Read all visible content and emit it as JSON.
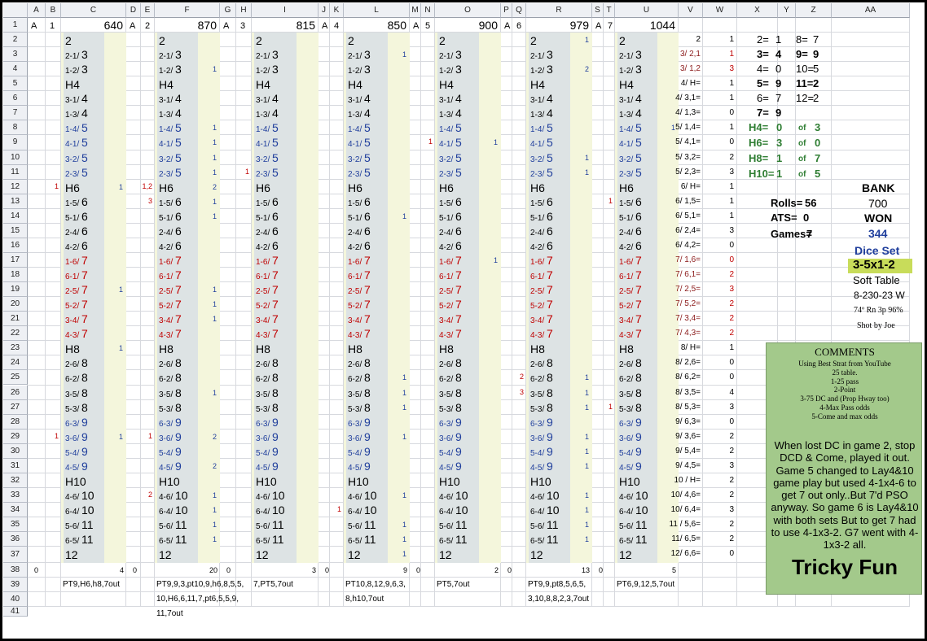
{
  "spreadsheet": {
    "column_headers": [
      "A",
      "B",
      "C",
      "D",
      "E",
      "F",
      "G",
      "H",
      "I",
      "J",
      "K",
      "L",
      "M",
      "N",
      "O",
      "P",
      "Q",
      "R",
      "S",
      "T",
      "U",
      "V",
      "W",
      "X",
      "Y",
      "Z",
      "AA"
    ],
    "row_count": 41,
    "colors": {
      "grid": "#d7d9de",
      "header": "#eef0f4",
      "gray_band": "#dde3e4",
      "yellow_band": "#f4f6dc",
      "comments": "#a3c98b",
      "dice_set_highlight": "#c8dc5a",
      "red": "#c00000",
      "blue": "#1f3e9c",
      "green": "#2e7d32"
    }
  },
  "roll_labels": [
    "2",
    "2-1/ 3",
    "1-2/ 3",
    "H4",
    "3-1/ 4",
    "1-3/ 4",
    "1-4/ 5",
    "4-1/ 5",
    "3-2/ 5",
    "2-3/ 5",
    "H6",
    "1-5/ 6",
    "5-1/ 6",
    "2-4/ 6",
    "4-2/ 6",
    "1-6/ 7",
    "6-1/ 7",
    "2-5/ 7",
    "5-2/ 7",
    "3-4/ 7",
    "4-3/ 7",
    "H8",
    "2-6/ 8",
    "6-2/ 8",
    "3-5/ 8",
    "5-3/ 8",
    "6-3/ 9",
    "3-6/ 9",
    "5-4/ 9",
    "4-5/ 9",
    "H10",
    "4-6/ 10",
    "6-4/ 10",
    "5-6/ 11",
    "6-5/ 11",
    "12"
  ],
  "roll_colors": [
    "k",
    "k",
    "k",
    "k",
    "k",
    "k",
    "b",
    "b",
    "b",
    "b",
    "k",
    "k",
    "k",
    "k",
    "k",
    "r",
    "r",
    "r",
    "r",
    "r",
    "r",
    "k",
    "k",
    "k",
    "k",
    "k",
    "b",
    "b",
    "b",
    "b",
    "k",
    "k",
    "k",
    "k",
    "k",
    "k"
  ],
  "games": [
    {
      "label_a": "A",
      "label_b": "1",
      "bank": "640",
      "total_left": "0",
      "total_right": "4",
      "points": [
        "PT9,H6,h8,7out"
      ],
      "left_marks": [
        [
          "12",
          "1"
        ],
        [
          "29",
          "1"
        ]
      ],
      "right_marks": [
        [
          "12",
          "1"
        ],
        [
          "19",
          "1"
        ],
        [
          "23",
          "1"
        ],
        [
          "29",
          "1"
        ]
      ]
    },
    {
      "label_a": "A",
      "label_b": "2",
      "bank": "870",
      "total_left": "0",
      "total_right": "20",
      "points": [
        "PT9,9,3,pt10,9,h6,8,5,5,",
        "10,H6,6,11,7,pt6,5,5,9,",
        "11,7out"
      ],
      "left_marks": [
        [
          "12",
          "1,2"
        ],
        [
          "13",
          "3"
        ],
        [
          "29",
          "1"
        ],
        [
          "33",
          "2"
        ]
      ],
      "right_marks": [
        [
          "4",
          "1"
        ],
        [
          "8",
          "1"
        ],
        [
          "9",
          "1"
        ],
        [
          "10",
          "1"
        ],
        [
          "11",
          "1"
        ],
        [
          "12",
          "2"
        ],
        [
          "13",
          "1"
        ],
        [
          "14",
          "1"
        ],
        [
          "19",
          "1"
        ],
        [
          "20",
          "1"
        ],
        [
          "21",
          "1"
        ],
        [
          "26",
          "1"
        ],
        [
          "29",
          "2"
        ],
        [
          "31",
          "2"
        ],
        [
          "33",
          "1"
        ],
        [
          "34",
          "1"
        ],
        [
          "35",
          "1"
        ],
        [
          "36",
          "1"
        ]
      ]
    },
    {
      "label_a": "A",
      "label_b": "3",
      "bank": "815",
      "total_left": "0",
      "total_right": "3",
      "points": [
        "7,PT5,7out"
      ],
      "left_marks": [
        [
          "11",
          "1"
        ]
      ],
      "right_marks": []
    },
    {
      "label_a": "A",
      "label_b": "4",
      "bank": "850",
      "total_left": "0",
      "total_right": "9",
      "points": [
        "PT10,8,12,9,6,3,",
        "8,h10,7out"
      ],
      "left_marks": [
        [
          "34",
          "1"
        ]
      ],
      "right_marks": [
        [
          "3",
          "1"
        ],
        [
          "14",
          "1"
        ],
        [
          "25",
          "1"
        ],
        [
          "26",
          "1"
        ],
        [
          "27",
          "1"
        ],
        [
          "29",
          "1"
        ],
        [
          "33",
          "1"
        ],
        [
          "35",
          "1"
        ],
        [
          "36",
          "1"
        ],
        [
          "37",
          "1"
        ]
      ]
    },
    {
      "label_a": "A",
      "label_b": "5",
      "bank": "900",
      "total_left": "0",
      "total_right": "2",
      "points": [
        "PT5,7out"
      ],
      "left_marks": [
        [
          "9",
          "1"
        ]
      ],
      "right_marks": [
        [
          "9",
          "1"
        ],
        [
          "17",
          "1"
        ]
      ]
    },
    {
      "label_a": "A",
      "label_b": "6",
      "bank": "979",
      "total_left": "0",
      "total_right": "13",
      "points": [
        "PT9,9,pt8,5,6,5,",
        "3,10,8,8,2,3,7out"
      ],
      "left_marks": [
        [
          "25",
          "2"
        ],
        [
          "26",
          "3"
        ]
      ],
      "right_marks": [
        [
          "2",
          "1"
        ],
        [
          "4",
          "2"
        ],
        [
          "10",
          "1"
        ],
        [
          "11",
          "1"
        ],
        [
          "25",
          "1"
        ],
        [
          "26",
          "1"
        ],
        [
          "27",
          "1"
        ],
        [
          "29",
          "1"
        ],
        [
          "30",
          "1"
        ],
        [
          "31",
          "1"
        ],
        [
          "33",
          "1"
        ],
        [
          "34",
          "1"
        ],
        [
          "35",
          "1"
        ],
        [
          "36",
          "1"
        ]
      ]
    },
    {
      "label_a": "A",
      "label_b": "7",
      "bank": "1044",
      "total_left": "0",
      "total_right": "5",
      "points": [
        "PT6,9,12,5,7out"
      ],
      "left_marks": [
        [
          "13",
          "1"
        ],
        [
          "27",
          "1"
        ]
      ],
      "right_marks": [
        [
          "8",
          "1"
        ]
      ]
    }
  ],
  "summary_v": [
    "2",
    "3/ 2,1",
    "3/ 1,2",
    "4/ H=",
    "4/ 3,1=",
    "4/ 1,3=",
    "5/ 1,4=",
    "5/ 4,1=",
    "5/ 3,2=",
    "5/ 2,3=",
    "6/ H=",
    "6/ 1,5=",
    "6/ 5,1=",
    "6/ 2,4=",
    "6/ 4,2=",
    "7/ 1,6=",
    "7/ 6,1=",
    "7/ 2,5=",
    "7/ 5,2=",
    "7/ 3,4=",
    "7/ 4,3=",
    "8/ H=",
    "8/ 2,6=",
    "8/ 6,2=",
    "8/ 3,5=",
    "8/ 5,3=",
    "9/ 6,3=",
    "9/ 3,6=",
    "9/ 5,4=",
    "9/ 4,5=",
    "10 / H=",
    "10/ 4,6=",
    "10/ 6,4=",
    "11 / 5,6=",
    "11/ 6,5=",
    "12/ 6,6="
  ],
  "summary_v_colors": [
    "k",
    "m",
    "m",
    "k",
    "k",
    "k",
    "k",
    "k",
    "k",
    "k",
    "k",
    "k",
    "k",
    "k",
    "k",
    "m",
    "m",
    "m",
    "m",
    "m",
    "m",
    "k",
    "k",
    "k",
    "k",
    "k",
    "k",
    "k",
    "k",
    "k",
    "k",
    "k",
    "k",
    "k",
    "k",
    "k"
  ],
  "summary_w": [
    "1",
    "1",
    "3",
    "1",
    "1",
    "0",
    "1",
    "0",
    "2",
    "3",
    "1",
    "1",
    "1",
    "3",
    "0",
    "0",
    "2",
    "3",
    "2",
    "2",
    "2",
    "1",
    "0",
    "0",
    "4",
    "3",
    "0",
    "2",
    "2",
    "3",
    "2",
    "2",
    "3",
    "2",
    "2",
    "0"
  ],
  "summary_w_colors": [
    "k",
    "m",
    "m",
    "k",
    "k",
    "k",
    "k",
    "k",
    "k",
    "k",
    "k",
    "k",
    "k",
    "k",
    "k",
    "m",
    "m",
    "m",
    "m",
    "m",
    "m",
    "k",
    "k",
    "k",
    "k",
    "k",
    "k",
    "k",
    "k",
    "k",
    "k",
    "k",
    "k",
    "k",
    "k",
    "k"
  ],
  "totals": [
    {
      "row": "2",
      "x": "2=",
      "y": "1",
      "z": "8=",
      "aa": "7",
      "bold": false
    },
    {
      "row": "3",
      "x": "3=",
      "y": "4",
      "z": "9=",
      "aa": "9",
      "bold": true
    },
    {
      "row": "4",
      "x": "4=",
      "y": "0",
      "z": "10=",
      "aa": "5",
      "bold": false
    },
    {
      "row": "5",
      "x": "5=",
      "y": "9",
      "z": "11=",
      "aa": "2",
      "bold": true
    },
    {
      "row": "6",
      "x": "6=",
      "y": "7",
      "z": "12=",
      "aa": "2",
      "bold": false
    },
    {
      "row": "7",
      "x": "7=",
      "y": "9",
      "z": "",
      "aa": "",
      "bold": true
    }
  ],
  "hardways": [
    {
      "label": "H4=",
      "made": "0",
      "of_label": "of",
      "total": "3"
    },
    {
      "label": "H6=",
      "made": "3",
      "of_label": "of",
      "total": "0"
    },
    {
      "label": "H8=",
      "made": "1",
      "of_label": "of",
      "total": "7"
    },
    {
      "label": "H10=",
      "made": "1",
      "of_label": "of",
      "total": "5"
    }
  ],
  "stats": {
    "bank_label": "BANK",
    "bank_value": "700",
    "rolls_label": "Rolls=",
    "rolls_value": "56",
    "ats_label": "ATS=",
    "ats_value": "0",
    "won_label": "WON",
    "won_value": "344",
    "games_label": "Games=",
    "games_value": "7",
    "dice_set_label": "Dice Set",
    "dice_set_value": "3-5x1-2",
    "table_type": "Soft Table",
    "date": "8-230-23 W",
    "weather": "74º Rn 3p 96%",
    "shooter": "Shot by Joe"
  },
  "comments": {
    "title": "COMMENTS",
    "lines": [
      "Using Best Strat from YouTube",
      "25 table.",
      "1-25 pass",
      "2-Point",
      "3-75 DC and (Prop Hway too)",
      "4-Max Pass odds",
      "5-Come and max odds"
    ],
    "narrative": "When lost DC in game 2, stop DCD & Come, played it out. Game 5 changed to Lay4&10 game play but  used 4-1x4-6 to get 7 out only..But 7'd PSO anyway. So game 6 is Lay4&10 with both sets But to get 7 had to use 4-1x3-2. G7 went with 4-1x3-2 all.",
    "footer": "Tricky Fun"
  }
}
